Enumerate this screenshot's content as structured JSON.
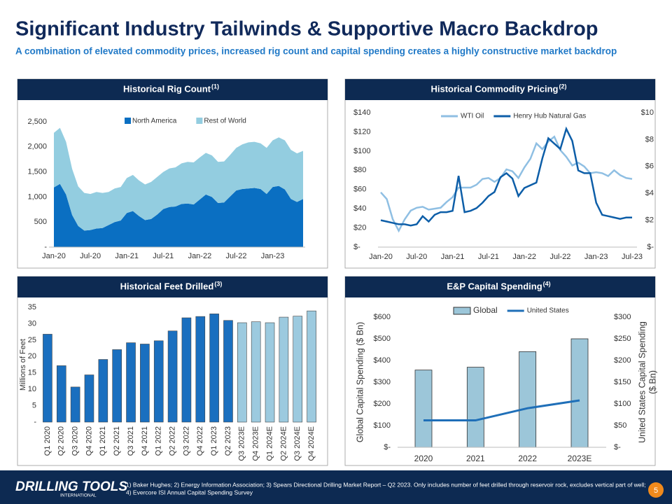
{
  "header": {
    "title": "Significant Industry Tailwinds & Supportive Macro Backdrop",
    "subtitle": "A combination of elevated commodity prices, increased rig count and capital spending creates a highly constructive market backdrop"
  },
  "chart_data": [
    {
      "type": "area",
      "title": "Historical Rig Count",
      "title_note": "(1)",
      "stacked": true,
      "categories": [
        "Jan-20",
        null,
        null,
        null,
        null,
        null,
        "Jul-20",
        null,
        null,
        null,
        null,
        null,
        "Jan-21",
        null,
        null,
        null,
        null,
        null,
        "Jul-21",
        null,
        null,
        null,
        null,
        null,
        "Jan-22",
        null,
        null,
        null,
        null,
        null,
        "Jul-22",
        null,
        null,
        null,
        null,
        null,
        "Jan-23",
        null,
        null,
        null,
        null,
        null
      ],
      "series": [
        {
          "name": "North America",
          "color": "#0a6fc2",
          "values": [
            1190,
            1260,
            1050,
            640,
            420,
            330,
            340,
            370,
            380,
            440,
            500,
            530,
            680,
            720,
            620,
            540,
            560,
            650,
            760,
            800,
            810,
            860,
            870,
            850,
            950,
            1050,
            1000,
            880,
            890,
            1010,
            1130,
            1160,
            1170,
            1180,
            1160,
            1060,
            1200,
            1220,
            1150,
            960,
            900,
            960
          ]
        },
        {
          "name": "Rest of World",
          "color": "#93cde0",
          "values": [
            1090,
            1120,
            1050,
            920,
            790,
            750,
            720,
            730,
            700,
            660,
            670,
            670,
            700,
            720,
            710,
            710,
            740,
            750,
            740,
            770,
            780,
            810,
            830,
            840,
            840,
            830,
            830,
            820,
            820,
            830,
            850,
            890,
            920,
            920,
            910,
            920,
            930,
            970,
            980,
            980,
            970,
            960
          ]
        }
      ],
      "ylim": [
        0,
        2500
      ],
      "yticks": [
        {
          "value": 0,
          "label": "-"
        },
        500,
        {
          "value": 1000,
          "label": "1,000"
        },
        {
          "value": 1500,
          "label": "1,500"
        },
        {
          "value": 2000,
          "label": "2,000"
        },
        {
          "value": 2500,
          "label": "2,500"
        }
      ],
      "legend": "top"
    },
    {
      "type": "line",
      "title": "Historical Commodity Pricing",
      "title_note": "(2)",
      "categories": [
        "Jan-20",
        null,
        null,
        null,
        null,
        null,
        "Jul-20",
        null,
        null,
        null,
        null,
        null,
        "Jan-21",
        null,
        null,
        null,
        null,
        null,
        "Jul-21",
        null,
        null,
        null,
        null,
        null,
        "Jan-22",
        null,
        null,
        null,
        null,
        null,
        "Jul-22",
        null,
        null,
        null,
        null,
        null,
        "Jan-23",
        null,
        null,
        null,
        null,
        null,
        "Jul-23"
      ],
      "series": [
        {
          "name": "WTI Oil",
          "color": "#8fbfe3",
          "values": [
            57,
            50,
            29,
            17,
            29,
            38,
            41,
            42,
            39,
            40,
            41,
            47,
            52,
            62,
            62,
            62,
            65,
            71,
            72,
            68,
            72,
            81,
            79,
            72,
            83,
            92,
            108,
            102,
            110,
            115,
            101,
            94,
            85,
            88,
            84,
            77,
            78,
            77,
            74,
            80,
            75,
            72,
            71
          ]
        },
        {
          "name": "Henry Hub Natural Gas",
          "color": "#0d5ea8",
          "axis": "y2",
          "values": [
            2.0,
            1.9,
            1.8,
            1.7,
            1.7,
            1.6,
            1.7,
            2.3,
            1.9,
            2.4,
            2.6,
            2.6,
            2.7,
            5.3,
            2.6,
            2.7,
            2.9,
            3.3,
            3.8,
            4.1,
            5.2,
            5.5,
            5.1,
            3.8,
            4.4,
            4.6,
            4.8,
            6.6,
            8.1,
            7.7,
            7.3,
            8.8,
            7.9,
            5.7,
            5.5,
            5.5,
            3.3,
            2.4,
            2.3,
            2.2,
            2.1,
            2.2,
            2.2
          ]
        }
      ],
      "ylim": [
        0,
        140
      ],
      "yticks": [
        {
          "value": 0,
          "label": "$-"
        },
        {
          "value": 20,
          "label": "$20"
        },
        {
          "value": 40,
          "label": "$40"
        },
        {
          "value": 60,
          "label": "$60"
        },
        {
          "value": 80,
          "label": "$80"
        },
        {
          "value": 100,
          "label": "$100"
        },
        {
          "value": 120,
          "label": "$120"
        },
        {
          "value": 140,
          "label": "$140"
        }
      ],
      "y2lim": [
        0,
        10
      ],
      "y2ticks": [
        {
          "value": 0,
          "label": "$-"
        },
        {
          "value": 2,
          "label": "$2"
        },
        {
          "value": 4,
          "label": "$4"
        },
        {
          "value": 6,
          "label": "$6"
        },
        {
          "value": 8,
          "label": "$8"
        },
        {
          "value": 10,
          "label": "$10"
        }
      ],
      "legend": "top"
    },
    {
      "type": "bar",
      "title": "Historical Feet Drilled",
      "title_note": "(3)",
      "ylabel": "Millions of Feet",
      "categories": [
        "Q1 2020",
        "Q2 2020",
        "Q3 2020",
        "Q4 2020",
        "Q1 2021",
        "Q2 2021",
        "Q3 2021",
        "Q4 2021",
        "Q1 2022",
        "Q2 2022",
        "Q3 2022",
        "Q4 2022",
        "Q1 2023",
        "Q2 2023",
        "Q3 2023E",
        "Q4 2023E",
        "Q1 2024E",
        "Q2 2024E",
        "Q3 2024E",
        "Q4 2024E"
      ],
      "values": [
        26.8,
        17.2,
        10.7,
        14.4,
        19.1,
        22.1,
        24.2,
        23.8,
        24.8,
        27.8,
        31.8,
        32.2,
        33.0,
        31.0,
        30.3,
        30.6,
        30.3,
        32.0,
        32.3,
        33.9
      ],
      "colors": [
        "#1a6fbf",
        "#1a6fbf",
        "#1a6fbf",
        "#1a6fbf",
        "#1a6fbf",
        "#1a6fbf",
        "#1a6fbf",
        "#1a6fbf",
        "#1a6fbf",
        "#1a6fbf",
        "#1a6fbf",
        "#1a6fbf",
        "#1a6fbf",
        "#1a6fbf",
        "#9ccadf",
        "#9ccadf",
        "#9ccadf",
        "#9ccadf",
        "#9ccadf",
        "#9ccadf"
      ],
      "ylim": [
        0,
        35
      ],
      "yticks": [
        {
          "value": 0,
          "label": "-"
        },
        5,
        10,
        15,
        20,
        25,
        30,
        35
      ]
    },
    {
      "type": "combo",
      "title": "E&P Capital Spending",
      "title_note": "(4)",
      "ylabel": "Global Capital Spending ($ Bn)",
      "y2label": [
        "United States Capital Spending",
        "($ Bn)"
      ],
      "categories": [
        "2020",
        "2021",
        "2022",
        "2023E"
      ],
      "series": [
        {
          "name": "Global",
          "type": "bar",
          "color": "#9cc6d9",
          "values": [
            356,
            369,
            441,
            500
          ]
        },
        {
          "name": "United States",
          "type": "line",
          "axis": "y2",
          "color": "#1f6fb8",
          "values": [
            62,
            62,
            90,
            108
          ]
        }
      ],
      "ylim": [
        0,
        600
      ],
      "yticks": [
        {
          "value": 0,
          "label": "$-"
        },
        {
          "value": 100,
          "label": "$100"
        },
        {
          "value": 200,
          "label": "$200"
        },
        {
          "value": 300,
          "label": "$300"
        },
        {
          "value": 400,
          "label": "$400"
        },
        {
          "value": 500,
          "label": "$500"
        },
        {
          "value": 600,
          "label": "$600"
        }
      ],
      "y2lim": [
        0,
        300
      ],
      "y2ticks": [
        {
          "value": 0,
          "label": "$-"
        },
        {
          "value": 50,
          "label": "$50"
        },
        {
          "value": 100,
          "label": "$100"
        },
        {
          "value": 150,
          "label": "$150"
        },
        {
          "value": 200,
          "label": "$200"
        },
        {
          "value": 250,
          "label": "$250"
        },
        {
          "value": 300,
          "label": "$300"
        }
      ],
      "legend": "top"
    }
  ],
  "footer": {
    "logo": "DRILLING TOOLS",
    "logo_sub": "INTERNATIONAL",
    "notes": [
      "1) Baker Hughes; 2) Energy Information Association; 3) Spears Directional Drilling Market Report – Q2 2023. Only includes number of feet drilled through reservoir rock, excludes vertical part of well;",
      "4) Evercore ISI Annual Capital Spending Survey"
    ],
    "page": "5"
  }
}
